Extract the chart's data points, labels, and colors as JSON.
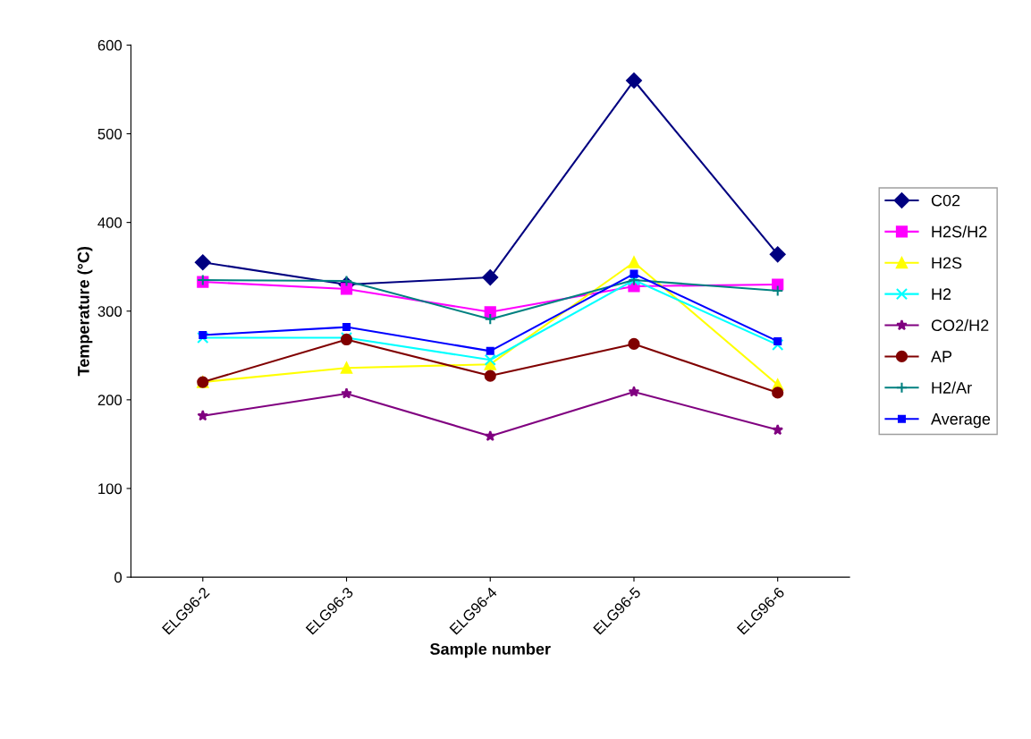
{
  "chart_data": {
    "type": "line",
    "xlabel": "Sample number",
    "ylabel": "Temperature (°C)",
    "categories": [
      "ELG96-2",
      "ELG96-3",
      "ELG96-4",
      "ELG96-5",
      "ELG96-6"
    ],
    "ylim": [
      0,
      600
    ],
    "yticks": [
      0,
      100,
      200,
      300,
      400,
      500,
      600
    ],
    "grid": false,
    "legend": "right",
    "series": [
      {
        "name": "C02",
        "color": "#000080",
        "marker": "diamond",
        "values": [
          355,
          330,
          338,
          560,
          364
        ]
      },
      {
        "name": "H2S/H2",
        "color": "#ff00ff",
        "marker": "square",
        "values": [
          333,
          325,
          299,
          328,
          330
        ]
      },
      {
        "name": "H2S",
        "color": "#ffff00",
        "marker": "triangle",
        "values": [
          220,
          236,
          240,
          355,
          217
        ]
      },
      {
        "name": "H2",
        "color": "#00ffff",
        "marker": "cross",
        "values": [
          270,
          270,
          245,
          335,
          262
        ]
      },
      {
        "name": "CO2/H2",
        "color": "#800080",
        "marker": "star",
        "values": [
          182,
          207,
          159,
          209,
          166
        ]
      },
      {
        "name": "AP",
        "color": "#800000",
        "marker": "circle",
        "values": [
          220,
          268,
          227,
          263,
          208
        ]
      },
      {
        "name": "H2/Ar",
        "color": "#008080",
        "marker": "plus",
        "values": [
          335,
          334,
          291,
          335,
          323
        ]
      },
      {
        "name": "Average",
        "color": "#0000ff",
        "marker": "square",
        "values": [
          273,
          282,
          255,
          342,
          266
        ]
      }
    ]
  }
}
